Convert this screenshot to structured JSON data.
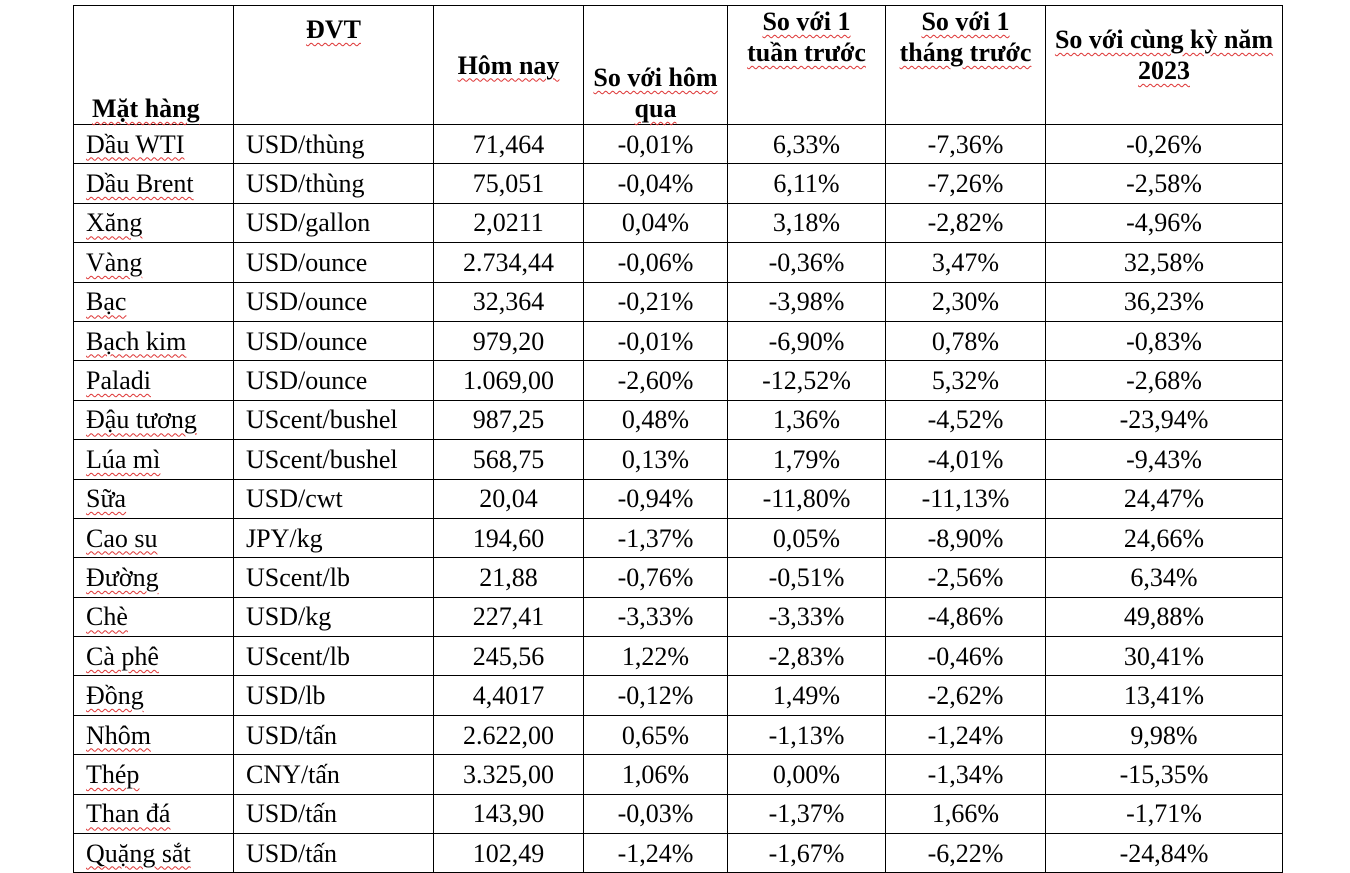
{
  "table": {
    "header": [
      "Mặt hàng",
      "ĐVT",
      "Hôm nay",
      "So với hôm qua",
      "So với 1 tuần trước",
      "So với 1 tháng trước",
      "So với cùng kỳ năm 2023"
    ],
    "rows": [
      [
        "Dầu WTI",
        "USD/thùng",
        "71,464",
        "-0,01%",
        "6,33%",
        "-7,36%",
        "-0,26%"
      ],
      [
        "Dầu Brent",
        "USD/thùng",
        "75,051",
        "-0,04%",
        "6,11%",
        "-7,26%",
        "-2,58%"
      ],
      [
        "Xăng",
        "USD/gallon",
        "2,0211",
        "0,04%",
        "3,18%",
        "-2,82%",
        "-4,96%"
      ],
      [
        "Vàng",
        "USD/ounce",
        "2.734,44",
        "-0,06%",
        "-0,36%",
        "3,47%",
        "32,58%"
      ],
      [
        "Bạc",
        "USD/ounce",
        "32,364",
        "-0,21%",
        "-3,98%",
        "2,30%",
        "36,23%"
      ],
      [
        "Bạch kim",
        "USD/ounce",
        "979,20",
        "-0,01%",
        "-6,90%",
        "0,78%",
        "-0,83%"
      ],
      [
        "Paladi",
        "USD/ounce",
        "1.069,00",
        "-2,60%",
        "-12,52%",
        "5,32%",
        "-2,68%"
      ],
      [
        "Đậu tương",
        "UScent/bushel",
        "987,25",
        "0,48%",
        "1,36%",
        "-4,52%",
        "-23,94%"
      ],
      [
        "Lúa mì",
        "UScent/bushel",
        "568,75",
        "0,13%",
        "1,79%",
        "-4,01%",
        "-9,43%"
      ],
      [
        "Sữa",
        "USD/cwt",
        "20,04",
        "-0,94%",
        "-11,80%",
        "-11,13%",
        "24,47%"
      ],
      [
        "Cao su",
        "JPY/kg",
        "194,60",
        "-1,37%",
        "0,05%",
        "-8,90%",
        "24,66%"
      ],
      [
        "Đường",
        "UScent/lb",
        "21,88",
        "-0,76%",
        "-0,51%",
        "-2,56%",
        "6,34%"
      ],
      [
        "Chè",
        "USD/kg",
        "227,41",
        "-3,33%",
        "-3,33%",
        "-4,86%",
        "49,88%"
      ],
      [
        "Cà phê",
        "UScent/lb",
        "245,56",
        "1,22%",
        "-2,83%",
        "-0,46%",
        "30,41%"
      ],
      [
        "Đồng",
        "USD/lb",
        "4,4017",
        "-0,12%",
        "1,49%",
        "-2,62%",
        "13,41%"
      ],
      [
        "Nhôm",
        "USD/tấn",
        "2.622,00",
        "0,65%",
        "-1,13%",
        "-1,24%",
        "9,98%"
      ],
      [
        "Thép",
        "CNY/tấn",
        "3.325,00",
        "1,06%",
        "0,00%",
        "-1,34%",
        "-15,35%"
      ],
      [
        "Than đá",
        "USD/tấn",
        "143,90",
        "-0,03%",
        "-1,37%",
        "1,66%",
        "-1,71%"
      ],
      [
        "Quặng sắt",
        "USD/tấn",
        "102,49",
        "-1,24%",
        "-1,67%",
        "-6,22%",
        "-24,84%"
      ]
    ]
  }
}
